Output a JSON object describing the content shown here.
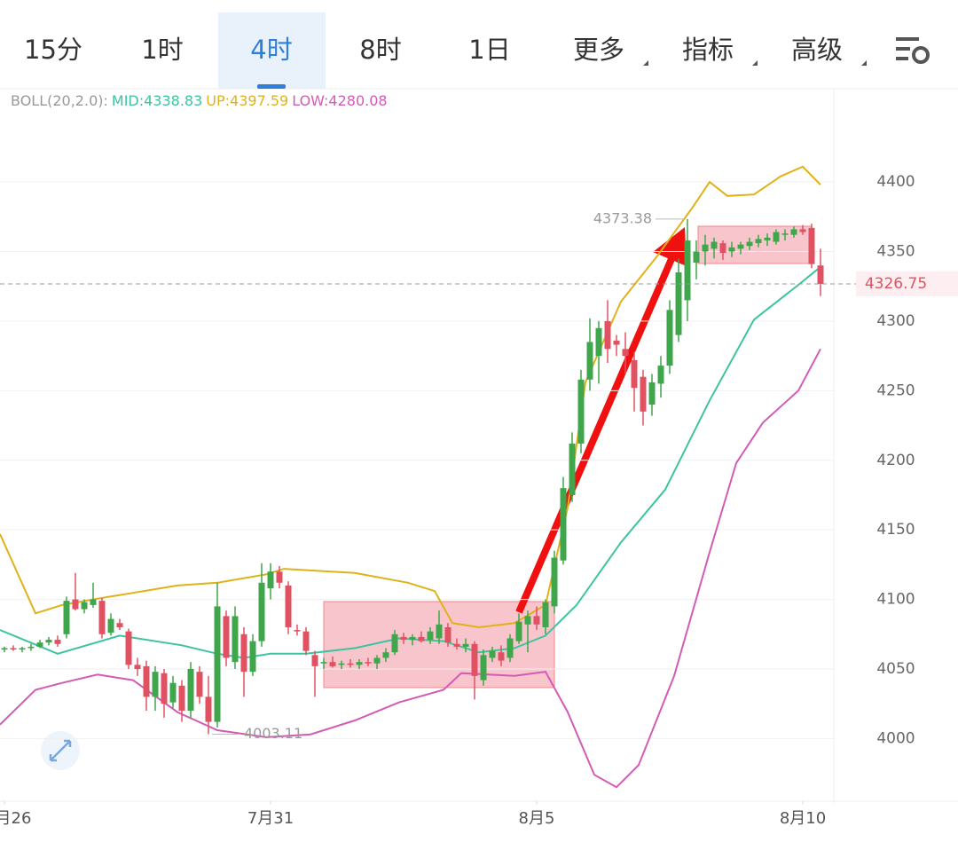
{
  "tabs": [
    "15分",
    "1时",
    "4时",
    "8时",
    "1日",
    "更多",
    "指标",
    "高级"
  ],
  "active_tab": 2,
  "chart_data": {
    "type": "candlestick",
    "x": [
      0,
      1,
      2,
      3,
      4,
      5,
      6,
      7,
      8,
      9,
      10,
      11,
      12,
      13,
      14,
      15,
      16,
      17,
      18,
      19,
      20,
      21,
      22,
      23,
      24,
      25,
      26,
      27,
      28,
      29,
      30,
      31,
      32,
      33,
      34,
      35,
      36,
      37,
      38,
      39,
      40,
      41,
      42,
      43,
      44,
      45,
      46,
      47,
      48,
      49,
      50,
      51,
      52,
      53,
      54,
      55,
      56,
      57,
      58,
      59,
      60,
      61,
      62,
      63,
      64,
      65,
      66,
      67,
      68,
      69,
      70,
      71,
      72,
      73,
      74,
      75,
      76,
      77,
      78,
      79,
      80,
      81,
      82,
      83,
      84,
      85,
      86,
      87,
      88,
      89,
      90,
      91,
      92
    ],
    "open": [
      4064,
      4065,
      4064,
      4065,
      4066,
      4069,
      4071,
      4075,
      4100,
      4093,
      4096,
      4099,
      4076,
      4083,
      4077,
      4053,
      4052,
      4030,
      4047,
      4026,
      4038,
      4020,
      4048,
      4030,
      4012,
      4088,
      4055,
      4075,
      4048,
      4070,
      4108,
      4120,
      4110,
      4078,
      4077,
      4060,
      4054,
      4055,
      4053,
      4054,
      4053,
      4055,
      4054,
      4058,
      4062,
      4073,
      4071,
      4073,
      4071,
      4072,
      4080,
      4068,
      4066,
      4068,
      4042,
      4058,
      4062,
      4058,
      4070,
      4082,
      4088,
      4080,
      4095,
      4128,
      4175,
      4212,
      4258,
      4275,
      4300,
      4286,
      4280,
      4272,
      4260,
      4240,
      4255,
      4268,
      4290,
      4315,
      4342,
      4350,
      4352,
      4356,
      4350,
      4352,
      4354,
      4356,
      4358,
      4357,
      4362,
      4362,
      4366,
      4367,
      4340
    ],
    "high": [
      4066,
      4067,
      4066,
      4068,
      4071,
      4073,
      4074,
      4102,
      4119,
      4100,
      4112,
      4101,
      4090,
      4086,
      4079,
      4058,
      4056,
      4052,
      4050,
      4045,
      4042,
      4055,
      4052,
      4045,
      4112,
      4092,
      4095,
      4080,
      4075,
      4126,
      4126,
      4124,
      4113,
      4082,
      4080,
      4063,
      4058,
      4059,
      4056,
      4057,
      4057,
      4058,
      4060,
      4065,
      4078,
      4076,
      4075,
      4077,
      4080,
      4092,
      4083,
      4072,
      4072,
      4070,
      4064,
      4066,
      4067,
      4075,
      4090,
      4092,
      4095,
      4100,
      4135,
      4188,
      4220,
      4265,
      4302,
      4300,
      4315,
      4290,
      4292,
      4278,
      4265,
      4262,
      4275,
      4315,
      4345,
      4373.38,
      4358,
      4362,
      4360,
      4358,
      4357,
      4357,
      4360,
      4362,
      4363,
      4366,
      4366,
      4368,
      4369,
      4370,
      4352
    ],
    "low": [
      4062,
      4063,
      4062,
      4063,
      4065,
      4067,
      4066,
      4072,
      4092,
      4090,
      4094,
      4072,
      4074,
      4078,
      4050,
      4045,
      4020,
      4020,
      4015,
      4022,
      4012,
      4015,
      4025,
      4003.11,
      4008,
      4052,
      4050,
      4030,
      4045,
      4066,
      4100,
      4108,
      4075,
      4074,
      4060,
      4030,
      4050,
      4051,
      4050,
      4051,
      4050,
      4052,
      4050,
      4055,
      4060,
      4068,
      4067,
      4069,
      4068,
      4068,
      4066,
      4064,
      4062,
      4028,
      4038,
      4055,
      4052,
      4055,
      4068,
      4062,
      4078,
      4075,
      4090,
      4125,
      4170,
      4205,
      4250,
      4255,
      4270,
      4275,
      4262,
      4235,
      4225,
      4232,
      4245,
      4262,
      4285,
      4300,
      4330,
      4340,
      4345,
      4344,
      4346,
      4348,
      4351,
      4353,
      4354,
      4355,
      4358,
      4360,
      4362,
      4338,
      4318
    ],
    "close": [
      4065,
      4064,
      4065,
      4066,
      4069,
      4071,
      4068,
      4099,
      4093,
      4098,
      4100,
      4075,
      4086,
      4080,
      4053,
      4050,
      4030,
      4048,
      4025,
      4040,
      4020,
      4050,
      4030,
      4012,
      4095,
      4058,
      4088,
      4048,
      4070,
      4112,
      4120,
      4112,
      4080,
      4077,
      4063,
      4052,
      4055,
      4052,
      4054,
      4053,
      4055,
      4054,
      4058,
      4062,
      4075,
      4071,
      4073,
      4070,
      4077,
      4082,
      4069,
      4066,
      4068,
      4045,
      4060,
      4063,
      4056,
      4072,
      4084,
      4088,
      4082,
      4098,
      4130,
      4180,
      4212,
      4258,
      4285,
      4295,
      4280,
      4283,
      4275,
      4252,
      4235,
      4256,
      4268,
      4308,
      4335,
      4358,
      4350,
      4355,
      4357,
      4349,
      4353,
      4355,
      4357,
      4359,
      4360,
      4364,
      4363,
      4366,
      4364,
      4341,
      4326.75
    ],
    "up_color": "#3fa64c",
    "down_color": "#e05262",
    "xlim": [
      -0.5,
      93.5
    ],
    "xticks": [
      {
        "value": 0,
        "label": "月26"
      },
      {
        "value": 30,
        "label": "7月31"
      },
      {
        "value": 60,
        "label": "8月5"
      },
      {
        "value": 90,
        "label": "8月10"
      }
    ],
    "ylim": [
      3955,
      4467
    ],
    "yticks": [
      4000,
      4050,
      4100,
      4150,
      4200,
      4250,
      4300,
      4350,
      4400
    ],
    "grid": true,
    "max_price": 4373.38,
    "max_index": 77,
    "min_price": 4003.11,
    "min_index": 23,
    "last_price": 4326.75,
    "indicator": {
      "title": "BOLL(20,2.0):",
      "series": [
        {
          "name": "MID:4338.83",
          "color": "#3cc4a0",
          "x": [
            -0.5,
            6,
            13,
            20,
            24,
            27,
            30,
            34,
            39.5,
            44.5,
            49.5,
            53.5,
            57.5,
            61,
            64.5,
            69.5,
            74.5,
            79.5,
            84.5,
            89.5,
            92
          ],
          "values": [
            4078,
            4061,
            4074,
            4067,
            4061,
            4058,
            4061,
            4061,
            4065,
            4072,
            4070,
            4062,
            4065,
            4074,
            4096,
            4141,
            4179,
            4243,
            4301,
            4326,
            4339
          ]
        },
        {
          "name": "UP:4397.59",
          "color": "#e0b21a",
          "x": [
            -0.5,
            3.5,
            6.5,
            10,
            19.5,
            24,
            29.5,
            31.5,
            39.5,
            45.5,
            48.5,
            50.5,
            53.5,
            57.5,
            61,
            63.5,
            65.5,
            69.5,
            73.5,
            77.5,
            79.5,
            81.5,
            84.5,
            87.5,
            90,
            92
          ],
          "values": [
            4147,
            4090,
            4096,
            4100,
            4110,
            4112,
            4118,
            4122,
            4119,
            4112,
            4106,
            4083,
            4080,
            4083,
            4096,
            4166,
            4256,
            4314,
            4346,
            4381,
            4400,
            4390,
            4391,
            4404,
            4411,
            4398
          ]
        },
        {
          "name": "LOW:4280.08",
          "color": "#d45bb5",
          "x": [
            -0.5,
            3.5,
            6.5,
            10.5,
            14.5,
            19.5,
            24,
            29.5,
            34.5,
            39.5,
            44.5,
            49.5,
            51.5,
            57.5,
            61,
            63.5,
            66.5,
            69,
            71.5,
            75.5,
            79.5,
            82.5,
            85.5,
            89.5,
            92
          ],
          "values": [
            4010,
            4035,
            4040,
            4046,
            4042,
            4019,
            4006,
            4001,
            4003,
            4013,
            4026,
            4035,
            4047,
            4045,
            4048,
            4019,
            3974,
            3965,
            3981,
            4045,
            4134,
            4198,
            4227,
            4250,
            4280
          ]
        }
      ]
    }
  }
}
